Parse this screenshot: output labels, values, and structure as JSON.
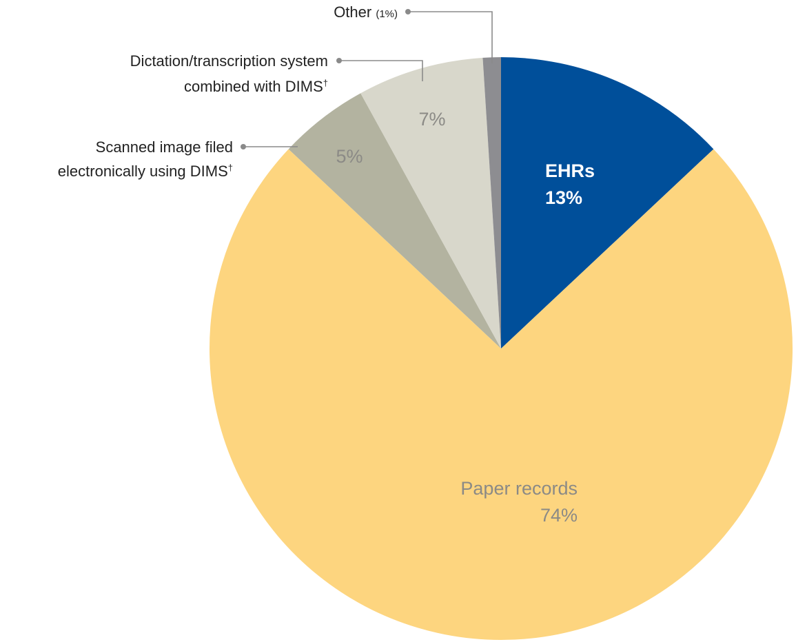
{
  "chart_data": {
    "type": "pie",
    "start_angle_deg": 0,
    "direction": "clockwise",
    "slices": [
      {
        "key": "ehrs",
        "value": 13,
        "color": "#004f9a",
        "label_inside": {
          "name": "EHRs",
          "pct": "13%",
          "color": "#ffffff",
          "bold": true
        }
      },
      {
        "key": "paper",
        "value": 74,
        "color": "#fdd57f",
        "label_inside": {
          "name": "Paper records",
          "pct": "74%",
          "color": "#8b8a86",
          "bold": false
        }
      },
      {
        "key": "scanned",
        "value": 5,
        "color": "#b3b3a0",
        "label_inside": {
          "pct": "5%",
          "color": "#8b8a86",
          "bold": false
        },
        "callout": {
          "lines": [
            "Scanned image filed",
            "electronically using DIMS"
          ],
          "footnote_mark": "†"
        }
      },
      {
        "key": "dictation",
        "value": 7,
        "color": "#d8d7cb",
        "label_inside": {
          "pct": "7%",
          "color": "#8b8a86",
          "bold": false
        },
        "callout": {
          "lines": [
            "Dictation/transcription system",
            "combined with DIMS"
          ],
          "footnote_mark": "†"
        }
      },
      {
        "key": "other",
        "value": 1,
        "color": "#8d8d91",
        "callout": {
          "name": "Other",
          "pct": "(1%)"
        }
      }
    ]
  }
}
